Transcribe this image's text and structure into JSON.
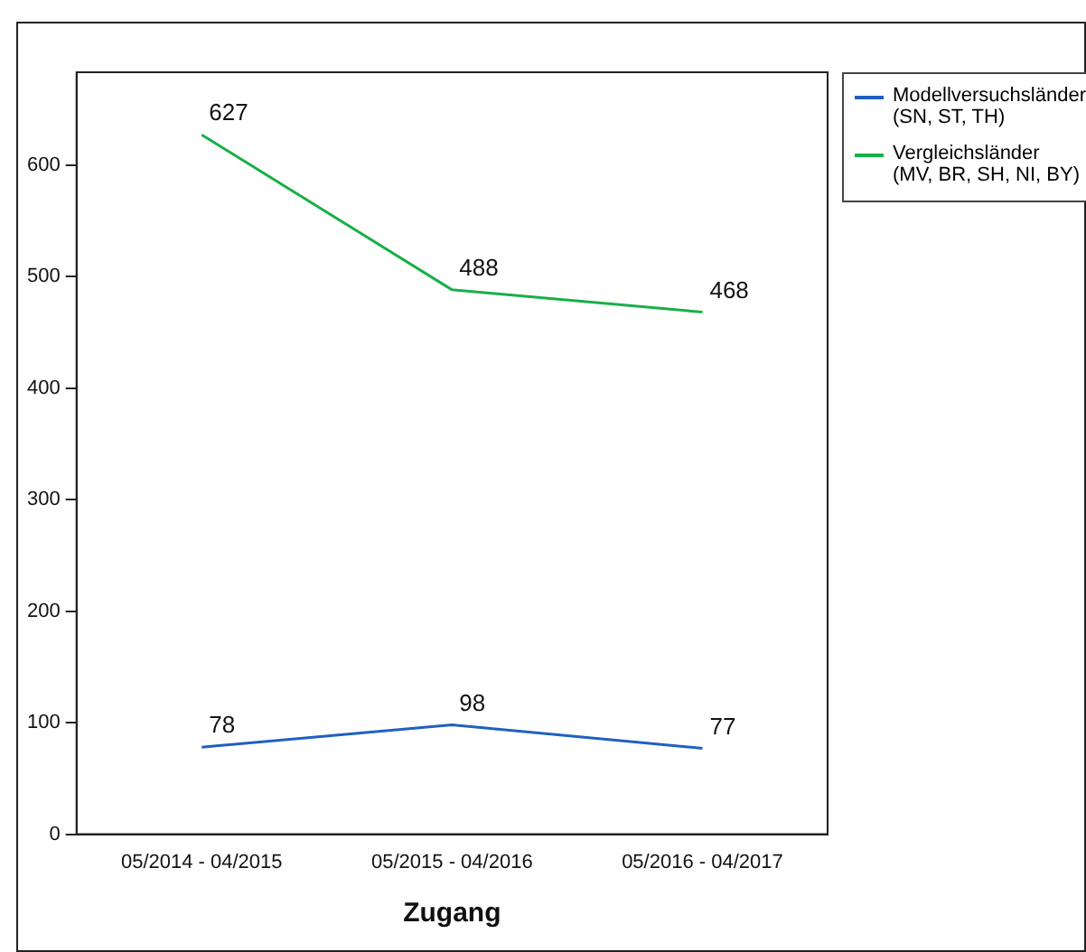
{
  "chart_data": {
    "type": "line",
    "xlabel": "Zugang",
    "categories": [
      "05/2014 - 04/2015",
      "05/2015 - 04/2016",
      "05/2016 - 04/2017"
    ],
    "series": [
      {
        "name": "Modellversuchsländer\n(SN, ST, TH)",
        "color": "#2060c0",
        "values": [
          78,
          98,
          77
        ]
      },
      {
        "name": "Vergleichsländer\n(MV, BR, SH, NI, BY)",
        "color": "#1aae4a",
        "values": [
          627,
          488,
          468
        ]
      }
    ],
    "ylim": [
      0,
      683
    ],
    "yticks": [
      0,
      100,
      200,
      300,
      400,
      500,
      600
    ],
    "grid": false,
    "legend": "right",
    "marker": "none",
    "data_labels": true
  }
}
